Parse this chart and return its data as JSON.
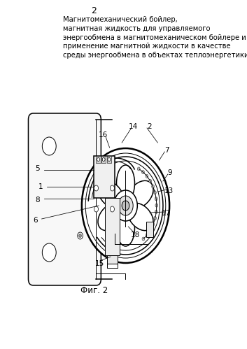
{
  "page_number": "2",
  "title_text": "Магнитомеханический бойлер,\nмагнитная жидкость для управляемого\nэнергообмена в магнитомеханическом бойлере и\nприменение магнитной жидкости в качестве\nсреды энергообмена в объектах теплоэнергетики",
  "fig_label": "Фиг. 2",
  "bg_color": "#ffffff",
  "line_color": "#000000",
  "title_fontsize": 7.2,
  "fig_label_fontsize": 8.5,
  "page_num_fontsize": 9
}
